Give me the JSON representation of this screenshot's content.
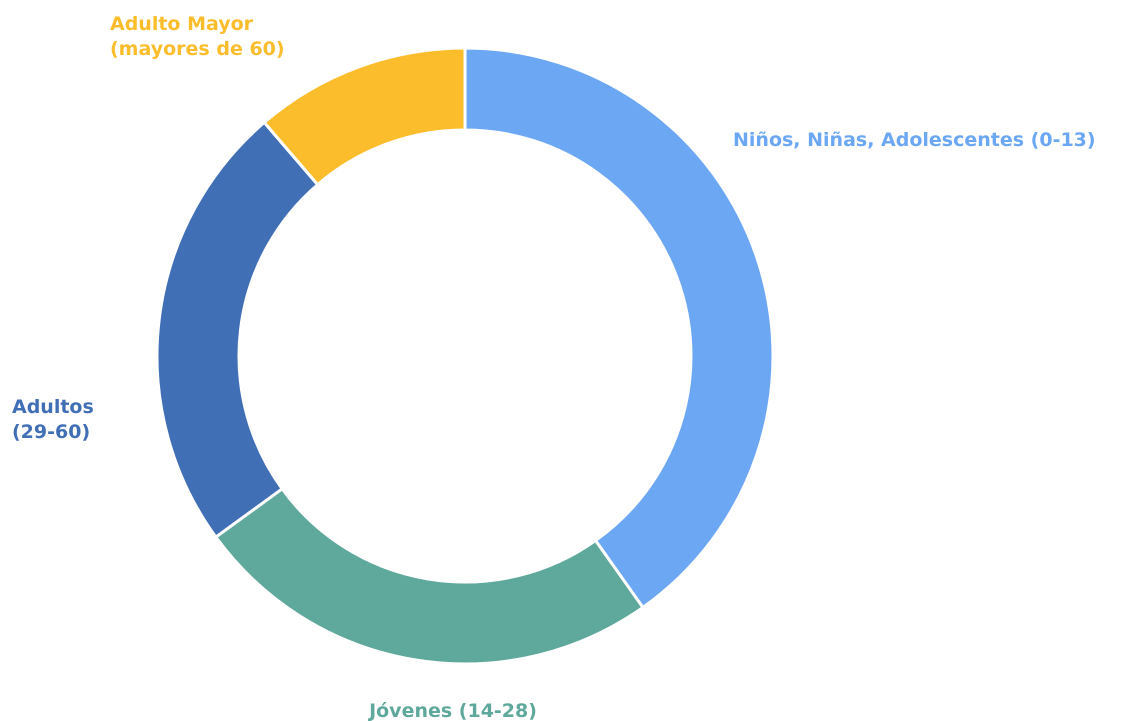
{
  "chart_data": {
    "type": "pie",
    "style": "donut",
    "title": "",
    "categories": [
      "Niños, Niñas, Adolescentes (0-13)",
      "Jóvenes (14-28)",
      "Adultos (29-60)",
      "Adulto Mayor (mayores de 60)"
    ],
    "values": [
      40.2,
      24.8,
      23.7,
      11.3
    ],
    "colors": [
      "#6ca7f3",
      "#5fa89c",
      "#416fb6",
      "#fbbd2c"
    ],
    "labels": [
      {
        "lines": [
          "Niños, Niñas, Adolescentes (0-13)"
        ]
      },
      {
        "lines": [
          "Jóvenes (14-28)"
        ]
      },
      {
        "lines": [
          "Adultos",
          "(29-60)"
        ]
      },
      {
        "lines": [
          "Adulto Mayor",
          "(mayores de 60)"
        ]
      }
    ],
    "legend": "none",
    "start": "top",
    "direction": "clockwise"
  }
}
